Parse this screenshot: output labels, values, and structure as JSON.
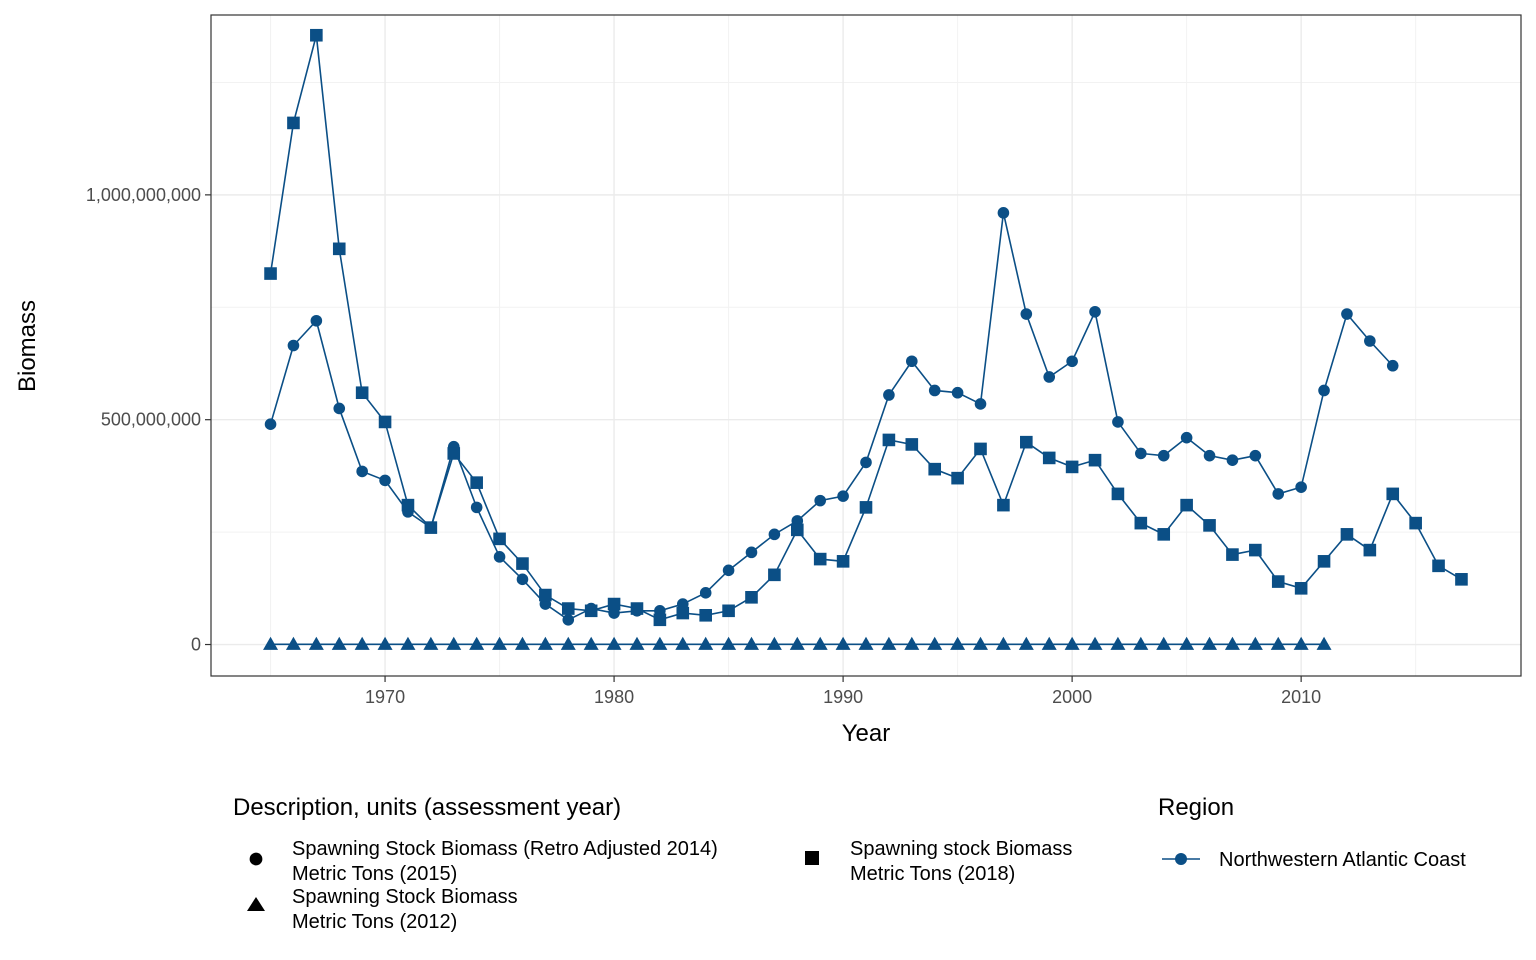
{
  "chart_data": {
    "type": "line",
    "xlabel": "Year",
    "ylabel": "Biomass",
    "xlim": [
      1962.4,
      2019.6
    ],
    "ylim": [
      -70000000,
      1400000000
    ],
    "x_ticks": [
      1970,
      1980,
      1990,
      2000,
      2010
    ],
    "y_ticks": [
      0,
      500000000,
      1000000000
    ],
    "y_tick_labels": [
      "0",
      "500,000,000",
      "1,000,000,000"
    ],
    "grid": true,
    "line_color": "#0b4f86",
    "legend_placement": "bottom",
    "legend_shape": {
      "title": "Description, units (assessment year)",
      "entries": [
        {
          "shape": "circle",
          "line1": "Spawning Stock Biomass (Retro Adjusted 2014)",
          "line2": "Metric Tons (2015)"
        },
        {
          "shape": "triangle",
          "line1": "Spawning Stock Biomass",
          "line2": "Metric Tons (2012)"
        },
        {
          "shape": "square",
          "line1": "Spawning stock Biomass",
          "line2": "Metric Tons (2018)"
        }
      ]
    },
    "legend_color": {
      "title": "Region",
      "entries": [
        {
          "label": "Northwestern Atlantic Coast",
          "color": "#0b4f86"
        }
      ]
    },
    "series": [
      {
        "shape": "circle",
        "region": "Northwestern Atlantic Coast",
        "x": [
          1965,
          1966,
          1967,
          1968,
          1969,
          1970,
          1971,
          1972,
          1973,
          1974,
          1975,
          1976,
          1977,
          1978,
          1979,
          1980,
          1981,
          1982,
          1983,
          1984,
          1985,
          1986,
          1987,
          1988,
          1989,
          1990,
          1991,
          1992,
          1993,
          1994,
          1995,
          1996,
          1997,
          1998,
          1999,
          2000,
          2001,
          2002,
          2003,
          2004,
          2005,
          2006,
          2007,
          2008,
          2009,
          2010,
          2011,
          2012,
          2013,
          2014
        ],
        "y": [
          490000000,
          665000000,
          720000000,
          525000000,
          385000000,
          365000000,
          295000000,
          260000000,
          440000000,
          305000000,
          195000000,
          145000000,
          90000000,
          55000000,
          80000000,
          70000000,
          75000000,
          75000000,
          90000000,
          115000000,
          165000000,
          205000000,
          245000000,
          275000000,
          320000000,
          330000000,
          405000000,
          555000000,
          630000000,
          565000000,
          560000000,
          535000000,
          960000000,
          735000000,
          595000000,
          630000000,
          740000000,
          495000000,
          425000000,
          420000000,
          460000000,
          420000000,
          410000000,
          420000000,
          335000000,
          350000000,
          565000000,
          735000000,
          675000000,
          620000000
        ]
      },
      {
        "shape": "square",
        "region": "Northwestern Atlantic Coast",
        "x": [
          1965,
          1966,
          1967,
          1968,
          1969,
          1970,
          1971,
          1972,
          1973,
          1974,
          1975,
          1976,
          1977,
          1978,
          1979,
          1980,
          1981,
          1982,
          1983,
          1984,
          1985,
          1986,
          1987,
          1988,
          1989,
          1990,
          1991,
          1992,
          1993,
          1994,
          1995,
          1996,
          1997,
          1998,
          1999,
          2000,
          2001,
          2002,
          2003,
          2004,
          2005,
          2006,
          2007,
          2008,
          2009,
          2010,
          2011,
          2012,
          2013,
          2014,
          2015,
          2016,
          2017
        ],
        "y": [
          825000000,
          1160000000,
          1355000000,
          880000000,
          560000000,
          495000000,
          310000000,
          260000000,
          425000000,
          360000000,
          235000000,
          180000000,
          110000000,
          80000000,
          75000000,
          90000000,
          80000000,
          55000000,
          70000000,
          65000000,
          75000000,
          105000000,
          155000000,
          255000000,
          190000000,
          185000000,
          305000000,
          455000000,
          445000000,
          390000000,
          370000000,
          435000000,
          310000000,
          450000000,
          415000000,
          395000000,
          410000000,
          335000000,
          270000000,
          245000000,
          310000000,
          265000000,
          200000000,
          210000000,
          140000000,
          125000000,
          185000000,
          245000000,
          210000000,
          335000000,
          270000000,
          175000000,
          145000000
        ]
      },
      {
        "shape": "triangle",
        "region": "Northwestern Atlantic Coast",
        "x": [
          1965,
          1966,
          1967,
          1968,
          1969,
          1970,
          1971,
          1972,
          1973,
          1974,
          1975,
          1976,
          1977,
          1978,
          1979,
          1980,
          1981,
          1982,
          1983,
          1984,
          1985,
          1986,
          1987,
          1988,
          1989,
          1990,
          1991,
          1992,
          1993,
          1994,
          1995,
          1996,
          1997,
          1998,
          1999,
          2000,
          2001,
          2002,
          2003,
          2004,
          2005,
          2006,
          2007,
          2008,
          2009,
          2010,
          2011
        ],
        "y": [
          500000,
          500000,
          500000,
          500000,
          500000,
          500000,
          500000,
          500000,
          500000,
          500000,
          500000,
          500000,
          500000,
          500000,
          500000,
          500000,
          500000,
          500000,
          500000,
          500000,
          500000,
          500000,
          500000,
          500000,
          500000,
          500000,
          500000,
          500000,
          500000,
          500000,
          500000,
          500000,
          500000,
          500000,
          500000,
          500000,
          500000,
          500000,
          500000,
          500000,
          500000,
          500000,
          500000,
          500000,
          500000,
          500000,
          500000
        ]
      }
    ]
  }
}
